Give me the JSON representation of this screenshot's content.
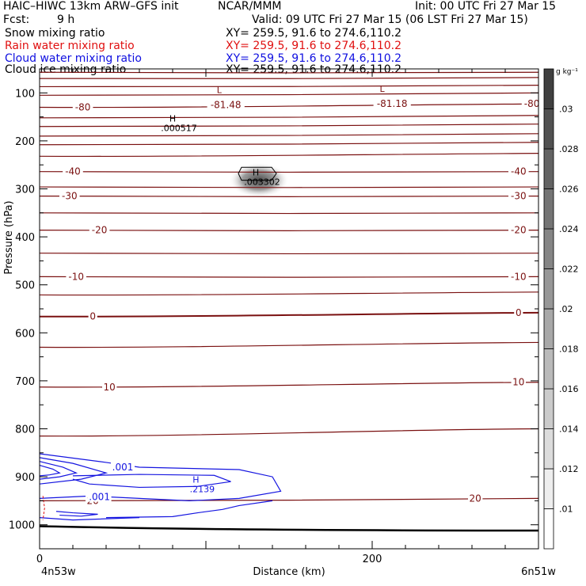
{
  "header": {
    "title": "HAIC–HIWC 13km ARW–GFS init",
    "org": "NCAR/MMM",
    "init": "Init: 00 UTC Fri 27 Mar 15",
    "fcst_label": "Fcst:",
    "fcst_value": "9 h",
    "valid": "Valid: 09 UTC Fri 27 Mar 15 (06 LST Fri 27 Mar 15)"
  },
  "fields": [
    {
      "name": "Snow mixing ratio",
      "xy": "XY= 259.5, 91.6 to 274.6,110.2",
      "color": "#000000"
    },
    {
      "name": "Rain water mixing ratio",
      "xy": "XY= 259.5, 91.6 to 274.6,110.2",
      "color": "#e01010"
    },
    {
      "name": "Cloud water mixing ratio",
      "xy": "XY= 259.5, 91.6 to 274.6,110.2",
      "color": "#1010e0"
    },
    {
      "name": "Cloud ice mixing ratio",
      "xy": "XY= 259.5, 91.6 to 274.6,110.2",
      "color": "#000000"
    }
  ],
  "chart_data": {
    "type": "contour",
    "xlabel": "Distance (km)",
    "ylabel": "Pressure (hPa)",
    "xlim": [
      0,
      300
    ],
    "ylim": [
      1050,
      50
    ],
    "x_ticks": [
      0,
      200
    ],
    "y_ticks": [
      100,
      200,
      300,
      400,
      500,
      600,
      700,
      800,
      900,
      1000
    ],
    "x_start_label": "4n53w",
    "x_end_label": "6n51w",
    "colorbar": {
      "unit": "g kg⁻¹",
      "labels": [
        ".01",
        ".012",
        ".014",
        ".016",
        ".018",
        ".02",
        ".022",
        ".024",
        ".026",
        ".028",
        ".03"
      ]
    },
    "contour_labels": [
      {
        "text": "-80",
        "x": 26,
        "p": 130
      },
      {
        "text": "-81.48",
        "x": 112,
        "p": 125
      },
      {
        "text": "-81.18",
        "x": 212,
        "p": 123
      },
      {
        "text": "-80",
        "x": 296,
        "p": 123
      },
      {
        "text": "-40",
        "x": 20,
        "p": 264
      },
      {
        "text": "-40",
        "x": 288,
        "p": 264
      },
      {
        "text": "-30",
        "x": 18,
        "p": 315
      },
      {
        "text": "-30",
        "x": 288,
        "p": 315
      },
      {
        "text": "-20",
        "x": 36,
        "p": 386
      },
      {
        "text": "-20",
        "x": 288,
        "p": 386
      },
      {
        "text": "-10",
        "x": 22,
        "p": 483
      },
      {
        "text": "-10",
        "x": 288,
        "p": 483
      },
      {
        "text": "0",
        "x": 32,
        "p": 566
      },
      {
        "text": "0",
        "x": 288,
        "p": 558
      },
      {
        "text": "10",
        "x": 42,
        "p": 713
      },
      {
        "text": "10",
        "x": 288,
        "p": 703
      },
      {
        "text": "20",
        "x": 32,
        "p": 950
      },
      {
        "text": "20",
        "x": 262,
        "p": 945
      }
    ],
    "extrema": [
      {
        "type": "H",
        "value": ".000517",
        "x": 80,
        "p": 160
      },
      {
        "type": "H",
        "value": ".003302",
        "x": 130,
        "p": 272
      },
      {
        "type": "L",
        "value": "",
        "x": 108,
        "p": 100
      },
      {
        "type": "L",
        "value": "",
        "x": 206,
        "p": 98
      },
      {
        "type": "H",
        "value": ".2139",
        "x": 94,
        "p": 912
      }
    ],
    "cloud_water_labels": [
      {
        "text": ".001",
        "x": 50,
        "p": 880
      },
      {
        "text": ".001",
        "x": 36,
        "p": 942
      }
    ],
    "temperature_contours": [
      {
        "p_left": 57,
        "p_right": 57
      },
      {
        "p_left": 70,
        "p_right": 68
      },
      {
        "p_left": 87,
        "p_right": 84
      },
      {
        "p_left": 105,
        "p_right": 100
      },
      {
        "p_left": 130,
        "p_right": 123
      },
      {
        "p_left": 152,
        "p_right": 147
      },
      {
        "p_left": 170,
        "p_right": 165
      },
      {
        "p_left": 190,
        "p_right": 185
      },
      {
        "p_left": 208,
        "p_right": 203
      },
      {
        "p_left": 232,
        "p_right": 226
      },
      {
        "p_left": 264,
        "p_right": 264
      },
      {
        "p_left": 296,
        "p_right": 296
      },
      {
        "p_left": 315,
        "p_right": 315
      },
      {
        "p_left": 350,
        "p_right": 350
      },
      {
        "p_left": 386,
        "p_right": 386
      },
      {
        "p_left": 434,
        "p_right": 434
      },
      {
        "p_left": 483,
        "p_right": 483
      },
      {
        "p_left": 521,
        "p_right": 515
      },
      {
        "p_left": 566,
        "p_right": 558
      },
      {
        "p_left": 630,
        "p_right": 620
      },
      {
        "p_left": 713,
        "p_right": 703
      },
      {
        "p_left": 815,
        "p_right": 800
      },
      {
        "p_left": 950,
        "p_right": 945
      }
    ]
  }
}
